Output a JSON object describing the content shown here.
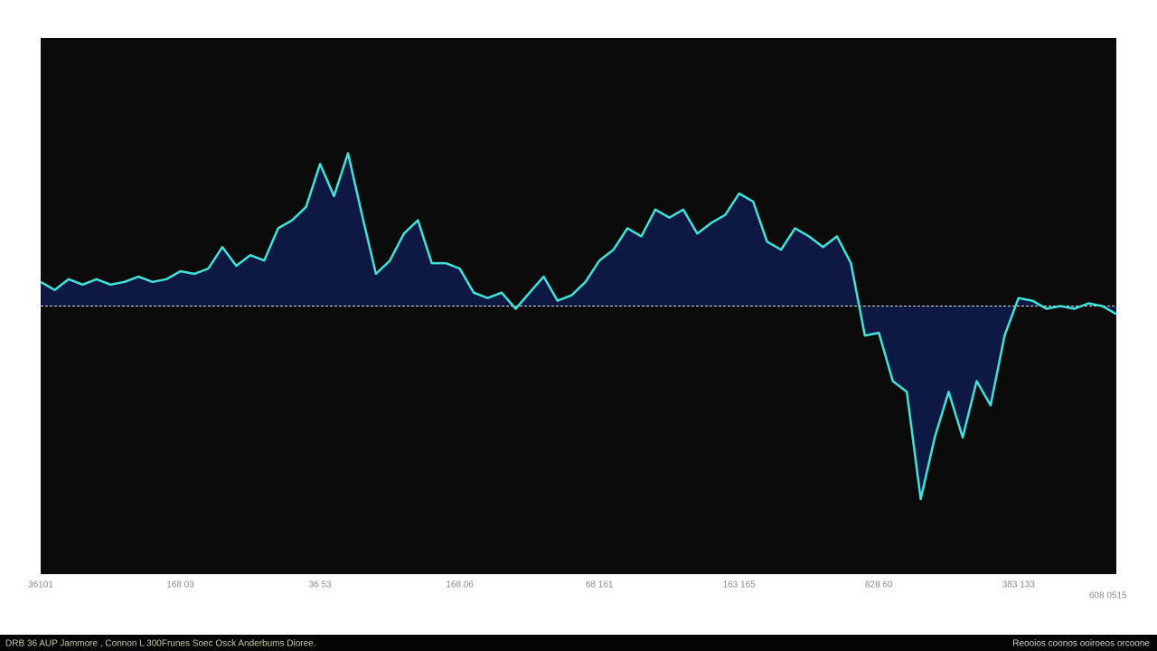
{
  "chart_data": {
    "type": "line",
    "x": [
      0,
      1,
      2,
      3,
      4,
      5,
      6,
      7,
      8,
      9,
      10,
      11,
      12,
      13,
      14,
      15,
      16,
      17,
      18,
      19,
      20,
      21,
      22,
      23,
      24,
      25,
      26,
      27,
      28,
      29,
      30,
      31,
      32,
      33,
      34,
      35,
      36,
      37,
      38,
      39,
      40,
      41,
      42,
      43,
      44,
      45,
      46,
      47,
      48,
      49,
      50,
      51,
      52,
      53,
      54,
      55,
      56,
      57,
      58,
      59,
      60,
      61,
      62,
      63,
      64,
      65,
      66,
      67,
      68,
      69,
      70,
      71,
      72,
      73,
      74,
      75,
      76,
      77
    ],
    "series": [
      {
        "color": "#3fe3d9",
        "fill": "#0f1c4d",
        "values": [
          9,
          6,
          10,
          8,
          10,
          8,
          9,
          11,
          9,
          10,
          13,
          12,
          14,
          22,
          15,
          19,
          17,
          29,
          32,
          37,
          53,
          41,
          57,
          34,
          12,
          17,
          27,
          32,
          16,
          16,
          14,
          5,
          3,
          5,
          -1,
          5,
          11,
          2,
          4,
          9,
          17,
          21,
          29,
          26,
          36,
          33,
          36,
          27,
          31,
          34,
          42,
          39,
          24,
          21,
          29,
          26,
          22,
          26,
          16,
          -11,
          -10,
          -28,
          -32,
          -72,
          -49,
          -32,
          -49,
          -28,
          -37,
          -11,
          3,
          2,
          -1,
          0,
          -1,
          1,
          0,
          -3
        ]
      }
    ],
    "xlim": [
      0,
      77
    ],
    "ylim": [
      -100,
      100
    ],
    "xticks": [
      {
        "value": 0,
        "label": "36101"
      },
      {
        "value": 10,
        "label": "168 03"
      },
      {
        "value": 20,
        "label": "36 53"
      },
      {
        "value": 30,
        "label": "168.06"
      },
      {
        "value": 40,
        "label": "68 161"
      },
      {
        "value": 50,
        "label": "163 165"
      },
      {
        "value": 60,
        "label": "828 60"
      },
      {
        "value": 70,
        "label": "383 133"
      },
      {
        "value": 76.4,
        "label": "608 0515"
      }
    ],
    "footer_left": "DRB 36 AUP Jammore , Connon L 300Frunes Soec Osck Anderbums Dioree.",
    "footer_right": "Reooios coonos ooiroeos orcoone"
  }
}
